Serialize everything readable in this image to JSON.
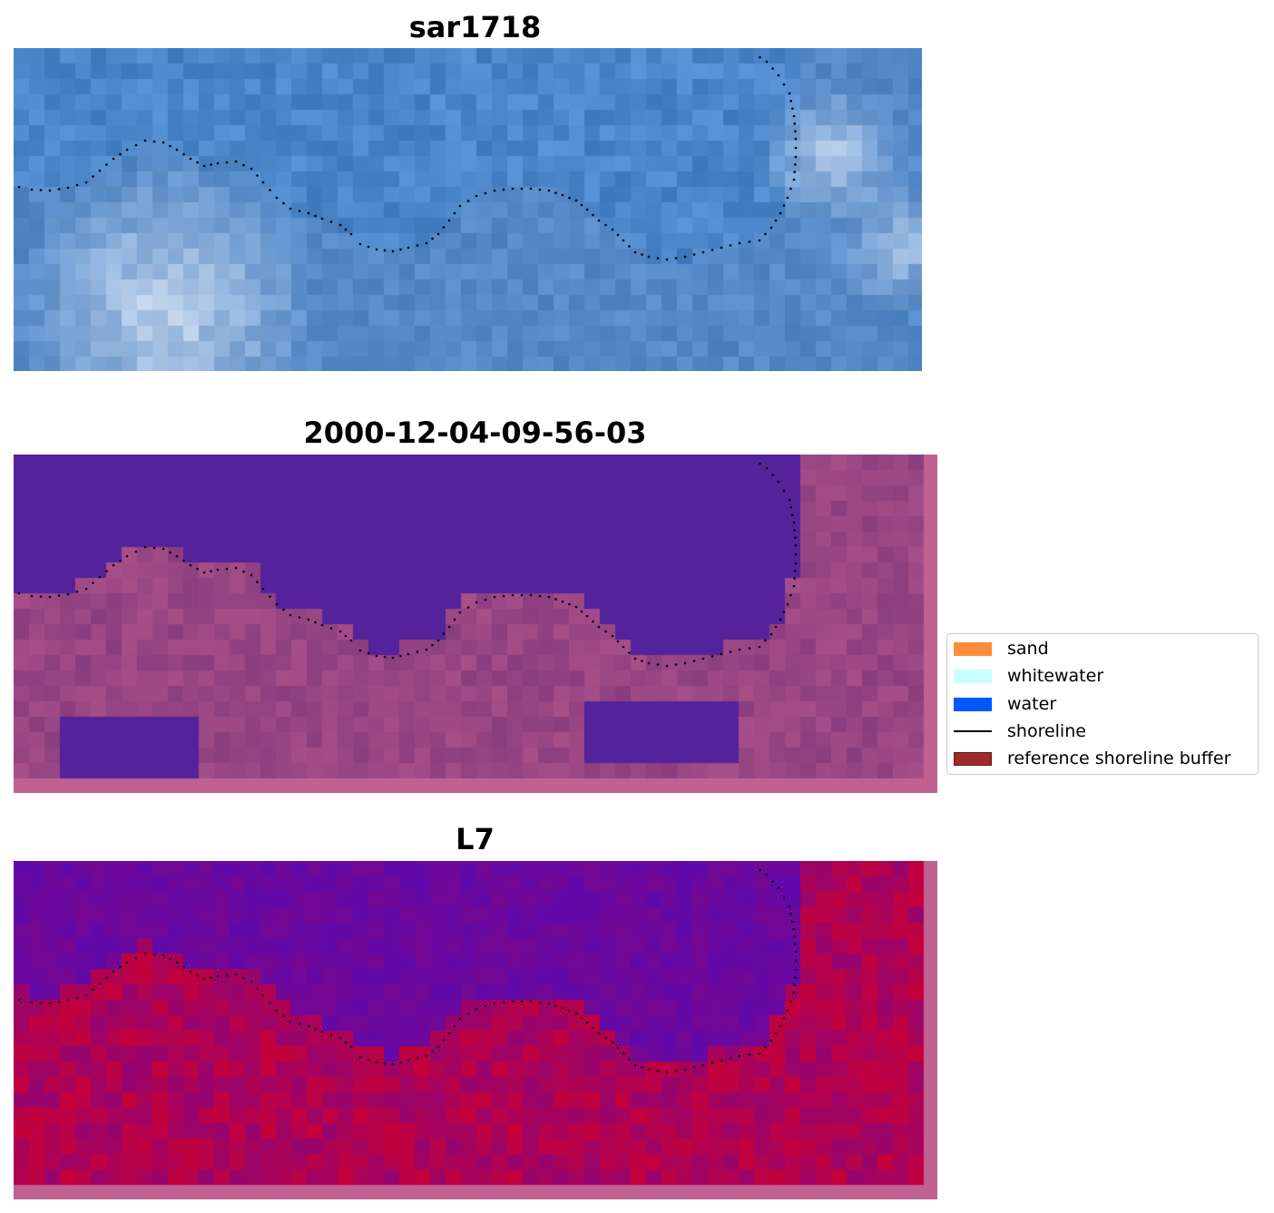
{
  "panels": [
    {
      "title": "sar1718",
      "kind": "rgb"
    },
    {
      "title": "2000-12-04-09-56-03",
      "kind": "classified"
    },
    {
      "title": "L7",
      "kind": "index"
    }
  ],
  "legend": {
    "items": [
      {
        "label": "sand",
        "color": "#ff8c3c",
        "type": "patch"
      },
      {
        "label": "whitewater",
        "color": "#c8ffff",
        "type": "patch"
      },
      {
        "label": "water",
        "color": "#0058ff",
        "type": "patch"
      },
      {
        "label": "shoreline",
        "color": "#000000",
        "type": "line"
      },
      {
        "label": "reference shoreline buffer",
        "color": "#9e2a2a",
        "type": "patch"
      }
    ]
  },
  "colors": {
    "water_class": "#54229a",
    "land_class": "#8a3d7e",
    "buffer_pink": "#c06191",
    "index_low": "#5b0ab0",
    "index_high": "#c4003a",
    "sea_blue": "#4a86c8"
  }
}
